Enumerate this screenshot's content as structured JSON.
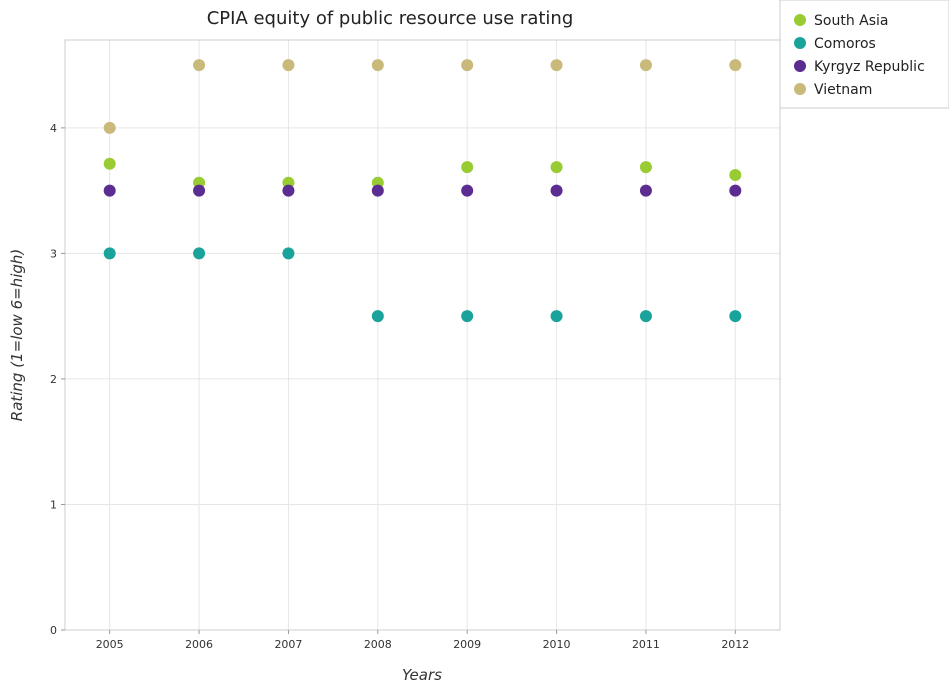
{
  "chart_data": {
    "type": "scatter",
    "title": "CPIA equity of public resource use rating",
    "xlabel": "Years",
    "ylabel": "Rating (1=low 6=high)",
    "categories": [
      "2005",
      "2006",
      "2007",
      "2008",
      "2009",
      "2010",
      "2011",
      "2012"
    ],
    "ylim": [
      0,
      4.7
    ],
    "yticks": [
      0,
      1,
      2,
      3,
      4
    ],
    "grid": true,
    "legend_position": "top-right",
    "series": [
      {
        "name": "South Asia",
        "color": "#99cc33",
        "values": [
          3.714,
          3.5625,
          3.5625,
          3.5625,
          3.6875,
          3.6875,
          3.6875,
          3.625
        ]
      },
      {
        "name": "Comoros",
        "color": "#1aa39a",
        "values": [
          3.0,
          3.0,
          3.0,
          2.5,
          2.5,
          2.5,
          2.5,
          2.5
        ]
      },
      {
        "name": "Kyrgyz Republic",
        "color": "#5c2d91",
        "values": [
          3.5,
          3.5,
          3.5,
          3.5,
          3.5,
          3.5,
          3.5,
          3.5
        ]
      },
      {
        "name": "Vietnam",
        "color": "#c9b97a",
        "values": [
          4.0,
          4.5,
          4.5,
          4.5,
          4.5,
          4.5,
          4.5,
          4.5
        ]
      }
    ]
  }
}
